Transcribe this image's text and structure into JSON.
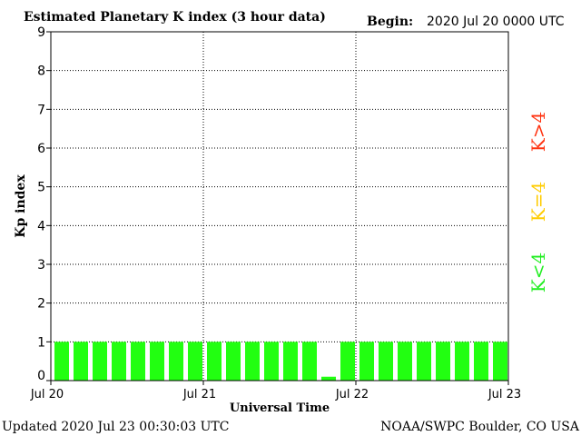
{
  "chart_data": {
    "type": "bar",
    "title": "Estimated Planetary K index (3 hour data)",
    "begin_label": "Begin:",
    "begin_value": "2020 Jul 20 0000 UTC",
    "xlabel": "Universal Time",
    "ylabel": "Kp index",
    "ylim": [
      0,
      9
    ],
    "yticks": [
      "0",
      "1",
      "2",
      "3",
      "4",
      "5",
      "6",
      "7",
      "8",
      "9"
    ],
    "xticks": [
      "Jul 20",
      "Jul 21",
      "Jul 22",
      "Jul 23"
    ],
    "grid": true,
    "legend": [
      {
        "label": "K<4",
        "color": "#22ee22"
      },
      {
        "label": "K=4",
        "color": "#ffcc00"
      },
      {
        "label": "K>4",
        "color": "#ff3311"
      }
    ],
    "bar_color": "#22ff11",
    "values": [
      1,
      1,
      1,
      1,
      1,
      1,
      1,
      1,
      1,
      1,
      1,
      1,
      1,
      1,
      0.1,
      1,
      1,
      1,
      1,
      1,
      1,
      1,
      1,
      1
    ]
  },
  "footer": {
    "updated": "Updated 2020 Jul 23 00:30:03 UTC",
    "source": "NOAA/SWPC Boulder, CO USA"
  }
}
